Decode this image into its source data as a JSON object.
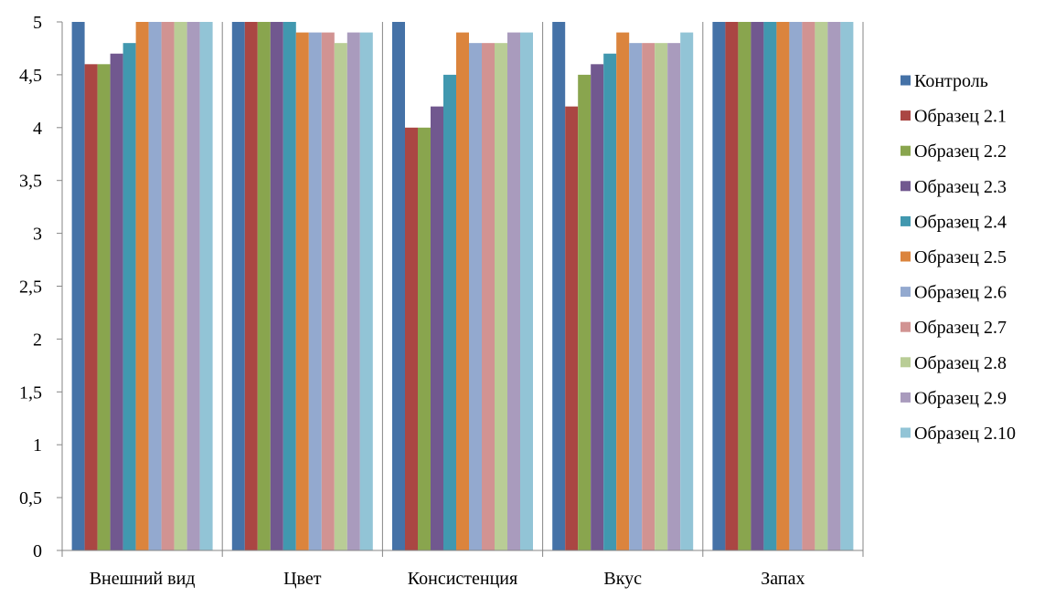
{
  "chart_data": {
    "type": "bar",
    "title": "",
    "xlabel": "",
    "ylabel": "",
    "ylim": [
      0,
      5
    ],
    "yticks": [
      0,
      0.5,
      1,
      1.5,
      2,
      2.5,
      3,
      3.5,
      4,
      4.5,
      5
    ],
    "ytick_labels": [
      "0",
      "0,5",
      "1",
      "1,5",
      "2",
      "2,5",
      "3",
      "3,5",
      "4",
      "4,5",
      "5"
    ],
    "grid": false,
    "legend_position": "right",
    "categories": [
      "Внешний вид",
      "Цвет",
      "Консистенция",
      "Вкус",
      "Запах"
    ],
    "series": [
      {
        "name": "Контроль",
        "color": "#4572A7",
        "values": [
          5,
          5,
          5,
          5,
          5
        ]
      },
      {
        "name": "Образец 2.1",
        "color": "#AA4643",
        "values": [
          4.6,
          5,
          4.0,
          4.2,
          5
        ]
      },
      {
        "name": "Образец 2.2",
        "color": "#89A54E",
        "values": [
          4.6,
          5,
          4.0,
          4.5,
          5
        ]
      },
      {
        "name": "Образец 2.3",
        "color": "#71588F",
        "values": [
          4.7,
          5,
          4.2,
          4.6,
          5
        ]
      },
      {
        "name": "Образец 2.4",
        "color": "#4198AF",
        "values": [
          4.8,
          5,
          4.5,
          4.7,
          5
        ]
      },
      {
        "name": "Образец 2.5",
        "color": "#DB843D",
        "values": [
          5,
          4.9,
          4.9,
          4.9,
          5
        ]
      },
      {
        "name": "Образец 2.6",
        "color": "#93A9CF",
        "values": [
          5,
          4.9,
          4.8,
          4.8,
          5
        ]
      },
      {
        "name": "Образец 2.7",
        "color": "#D19392",
        "values": [
          5,
          4.9,
          4.8,
          4.8,
          5
        ]
      },
      {
        "name": "Образец 2.8",
        "color": "#B9CD96",
        "values": [
          5,
          4.8,
          4.8,
          4.8,
          5
        ]
      },
      {
        "name": "Образец 2.9",
        "color": "#A99BBD",
        "values": [
          5,
          4.9,
          4.9,
          4.8,
          5
        ]
      },
      {
        "name": "Образец 2.10",
        "color": "#92C4D6",
        "values": [
          5,
          4.9,
          4.9,
          4.9,
          5
        ]
      }
    ]
  }
}
